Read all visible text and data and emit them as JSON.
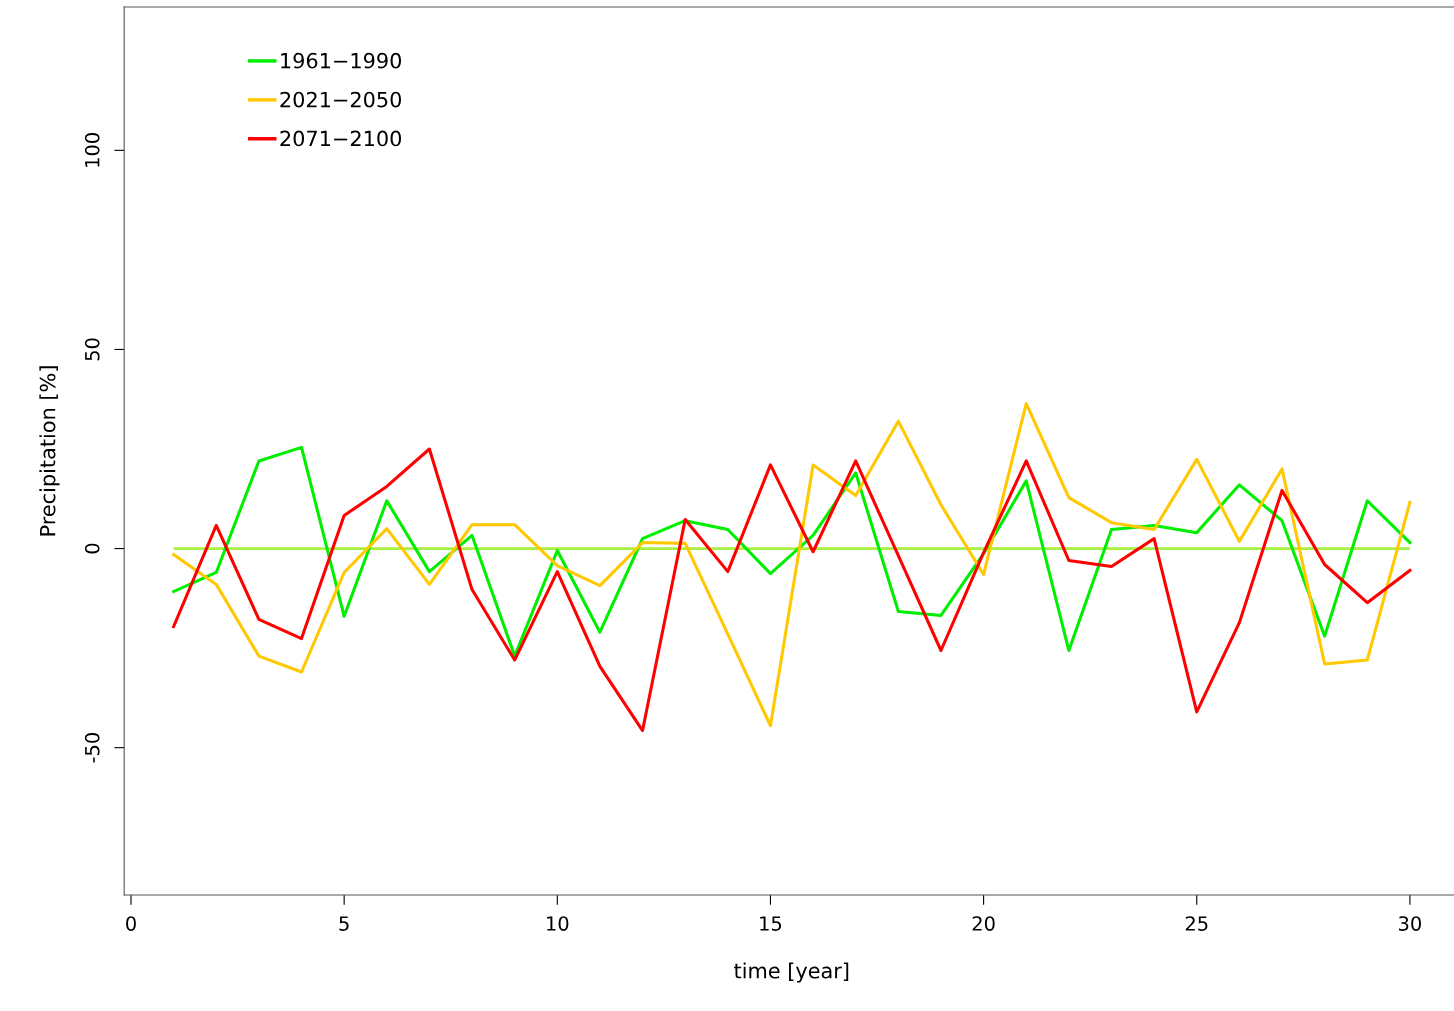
{
  "chart_data": {
    "type": "line",
    "xlabel": "time [year]",
    "ylabel": "Precipitation [%]",
    "x": [
      1,
      2,
      3,
      4,
      5,
      6,
      7,
      8,
      9,
      10,
      11,
      12,
      13,
      14,
      15,
      16,
      17,
      18,
      19,
      20,
      21,
      22,
      23,
      24,
      25,
      26,
      27,
      28,
      29,
      30
    ],
    "series": [
      {
        "name": "1961−1990",
        "color": "#00ee00",
        "values": [
          -10.8,
          -6,
          22,
          25.4,
          -17,
          12,
          -5.8,
          3.3,
          -27,
          -0.5,
          -21,
          2.5,
          7,
          4.8,
          -6.3,
          3.3,
          19,
          -15.8,
          -16.8,
          -1.3,
          17,
          -25.6,
          4.8,
          5.8,
          4,
          16,
          7,
          -22,
          12,
          1.5
        ]
      },
      {
        "name": "2021−2050",
        "color": "#ffc800",
        "values": [
          -1.5,
          -9,
          -27,
          -31,
          -6,
          5,
          -9,
          6,
          6,
          -4.3,
          -9.3,
          1.5,
          1.3,
          -21.5,
          -44.5,
          21,
          13.3,
          32,
          11,
          -6.5,
          36.4,
          12.8,
          6.5,
          4.8,
          22.4,
          1.8,
          20,
          -29,
          -28,
          11.6
        ]
      },
      {
        "name": "2071−2100",
        "color": "#ff0000",
        "values": [
          -19.6,
          5.8,
          -17.8,
          -22.6,
          8.3,
          15.6,
          25,
          -10.3,
          -28,
          -5.8,
          -29.6,
          -45.7,
          7.3,
          -5.8,
          21,
          -0.8,
          22,
          -1.8,
          -25.6,
          -1,
          22,
          -3,
          -4.5,
          2.5,
          -41,
          -18.6,
          14.6,
          -4,
          -13.6,
          -5.5
        ]
      }
    ],
    "ref_lines": [
      {
        "axis": "y",
        "value": 0,
        "color": "#a8f040"
      }
    ],
    "xlim": [
      -0.16,
      31.16
    ],
    "xticks": [
      0,
      5,
      10,
      15,
      20,
      25,
      30
    ],
    "ylim": [
      -87,
      136
    ],
    "yticks": [
      -50,
      0,
      50,
      100
    ],
    "legend": "top left",
    "grid": false,
    "line_style": "solid",
    "marker": "none"
  }
}
